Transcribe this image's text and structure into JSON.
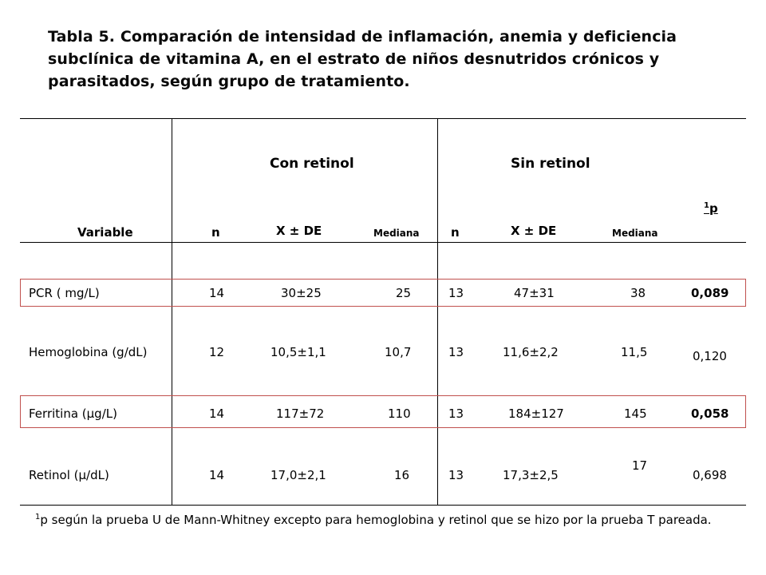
{
  "title": {
    "line1": "Tabla 5. Comparación de intensidad de inflamación, anemia y deficiencia",
    "line2": "subclínica de vitamina A,  en el estrato de niños desnutridos crónicos y",
    "line3": "parasitados, según grupo de tratamiento."
  },
  "table": {
    "group_headers": [
      "Con retinol",
      "Sin retinol"
    ],
    "columns": {
      "variable": "Variable",
      "n1": "n",
      "mean1": "X ± DE",
      "median1": "Mediana",
      "n2": "n",
      "mean2": "X ± DE",
      "median2": "Mediana",
      "p_sup": "1",
      "p": "p"
    },
    "rows": [
      {
        "variable": "PCR ( mg/L)",
        "n1": "14",
        "mean1": "30±25",
        "median1": "25",
        "n2": "13",
        "mean2": "47±31",
        "median2": "38",
        "p": "0,089",
        "highlight": true
      },
      {
        "variable": "Hemoglobina (g/dL)",
        "n1": "12",
        "mean1": "10,5±1,1",
        "median1": "10,7",
        "n2": "13",
        "mean2": "11,6±2,2",
        "median2": "11,5",
        "p": "0,120",
        "highlight": false
      },
      {
        "variable": "Ferritina (µg/L)",
        "n1": "14",
        "mean1": "117±72",
        "median1": "110",
        "n2": "13",
        "mean2": "184±127",
        "median2": "145",
        "p": "0,058",
        "highlight": true
      },
      {
        "variable": "Retinol (µ/dL)",
        "n1": "14",
        "mean1": "17,0±2,1",
        "median1": "16",
        "n2": "13",
        "mean2": "17,3±2,5",
        "median2": "17",
        "p": "0,698",
        "highlight": false
      }
    ]
  },
  "footnote": {
    "sup": "1",
    "text": "p según la prueba U de Mann-Whitney excepto para hemoglobina y retinol que se hizo por la prueba T pareada."
  },
  "colors": {
    "highlight_border": "#c0504d"
  }
}
